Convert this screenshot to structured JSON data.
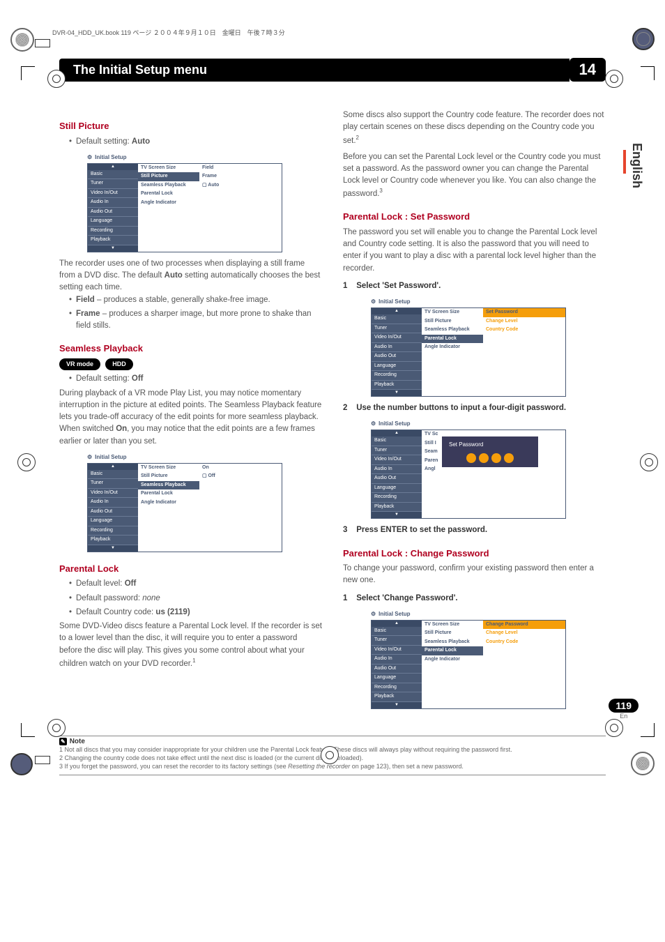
{
  "header_line": "DVR-04_HDD_UK.book  119 ページ  ２００４年９月１０日　金曜日　午後７時３分",
  "title_bar": "The Initial Setup menu",
  "chapter": "14",
  "side_lang": "English",
  "page_num": "119",
  "page_lang": "En",
  "left": {
    "still_hdr": "Still Picture",
    "still_default": "Auto",
    "still_p1": "The recorder uses one of two processes when displaying a still frame from a DVD disc. The default ",
    "still_p1b": "Auto",
    "still_p1c": " setting automatically chooses the best setting each time.",
    "still_field_a": "Field",
    "still_field_b": " – produces a stable, generally shake-free image.",
    "still_frame_a": "Frame",
    "still_frame_b": " – produces a sharper image, but more prone to shake than field stills.",
    "seamless_hdr": "Seamless Playback",
    "badge_vr": "VR mode",
    "badge_hdd": "HDD",
    "seamless_default": "Off",
    "seamless_p": "During playback of a VR mode Play List, you may notice momentary interruption in the picture at edited points. The Seamless Playback feature lets you trade-off accuracy of the edit points for more seamless playback. When switched ",
    "seamless_pb": "On",
    "seamless_pc": ", you may notice that the edit points are a few frames earlier or later than you set.",
    "parental_hdr": "Parental Lock",
    "parental_level": "Off",
    "parental_pw": "none",
    "parental_cc": "us (2119)",
    "parental_p": "Some DVD-Video discs feature a Parental Lock level. If the recorder is set to a lower level than the disc, it will require you to enter a password before the disc will play. This gives you some control about what your children watch on your DVD recorder."
  },
  "right": {
    "intro_p1": "Some discs also support the Country code feature. The recorder does not play certain scenes on these discs depending on the Country code you set.",
    "intro_p2": "Before you can set the Parental Lock level or the Country code you must set a password. As the password owner you can change the Parental Lock level or Country code whenever you like. You can also change the password.",
    "setpw_hdr": "Parental Lock : Set Password",
    "setpw_p": "The password you set will enable you to change the Parental Lock level and Country code setting. It is also the password that you will need to enter if you want to play a disc with a parental lock level higher than the recorder.",
    "step1": "Select 'Set Password'.",
    "step2": "Use the number buttons to input a four-digit password.",
    "step3": "Press ENTER to set the password.",
    "chgpw_hdr": "Parental Lock : Change Password",
    "chgpw_p": "To change your password, confirm your existing password then enter a new one.",
    "chg_step1": "Select 'Change Password'."
  },
  "menu": {
    "hdr": "Initial Setup",
    "left": [
      "Basic",
      "Tuner",
      "Video In/Out",
      "Audio In",
      "Audio Out",
      "Language",
      "Recording",
      "Playback"
    ],
    "mid": [
      "TV Screen Size",
      "Still Picture",
      "Seamless Playback",
      "Parental Lock",
      "Angle Indicator"
    ],
    "still_opts": [
      "Field",
      "Frame",
      "Auto"
    ],
    "seamless_opts": [
      "On",
      "Off"
    ],
    "pl_opts": [
      "Set Password",
      "Change Level",
      "Country Code"
    ],
    "chg_opts": [
      "Change Password",
      "Change Level",
      "Country Code"
    ],
    "pw_label": "Set Password"
  },
  "note": {
    "hdr": "Note",
    "n1": "1 Not all discs that you may consider inappropriate for your children use the Parental Lock feature. These discs will always play without requiring the password first.",
    "n2": "2 Changing the country code does not take effect until the next disc is loaded (or the current disc is reloaded).",
    "n3a": "3 If you forget the password, you can reset the recorder to its factory settings (see ",
    "n3b": "Resetting the recorder",
    "n3c": " on page 123), then set a new password."
  },
  "default_setting_label": "Default setting: ",
  "default_level_label": "Default level: ",
  "default_pw_label": "Default password: ",
  "default_cc_label": "Default Country code: "
}
